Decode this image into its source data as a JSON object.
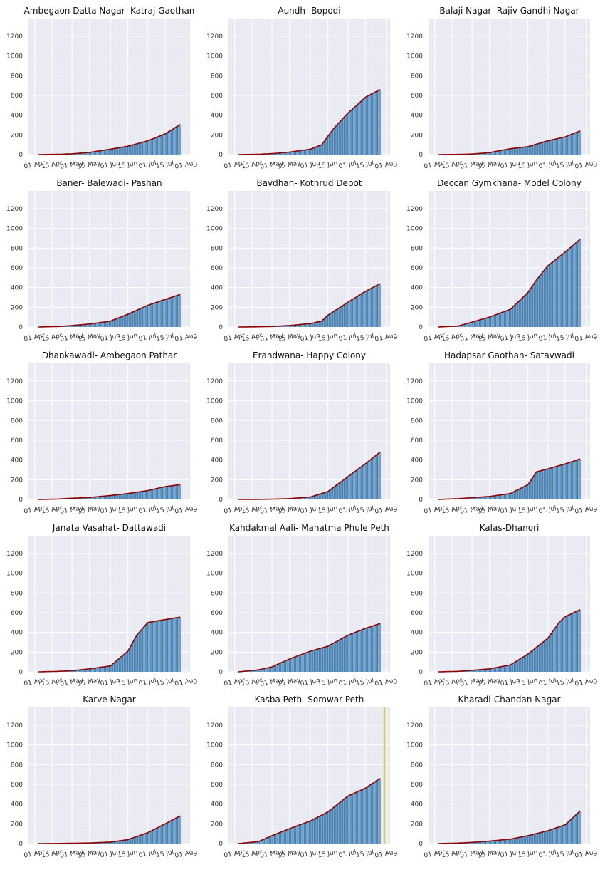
{
  "chart_data": {
    "type": "bar",
    "ylim": [
      0,
      1380
    ],
    "yticks": [
      0,
      200,
      400,
      600,
      800,
      1000,
      1200
    ],
    "xticks": [
      "01 Apr",
      "15 Apr",
      "01 May",
      "15 May",
      "01 Jun",
      "15 Jun",
      "01 Jul",
      "15 Jul",
      "01 Aug"
    ],
    "colors": {
      "bar": "#4682b4",
      "line": "#8b0000",
      "background": "#eaeaf2",
      "grid": "#ffffff",
      "highlight": "#d4cc78"
    },
    "panels": [
      {
        "title": "Ambegaon Datta Nagar- Katraj Gaothan",
        "anchors": [
          [
            "2020-04-04",
            0
          ],
          [
            "2020-04-20",
            3
          ],
          [
            "2020-05-01",
            8
          ],
          [
            "2020-05-15",
            22
          ],
          [
            "2020-06-01",
            55
          ],
          [
            "2020-06-15",
            85
          ],
          [
            "2020-07-01",
            140
          ],
          [
            "2020-07-15",
            210
          ],
          [
            "2020-07-27",
            305
          ]
        ]
      },
      {
        "title": "Aundh- Bopodi",
        "anchors": [
          [
            "2020-04-04",
            0
          ],
          [
            "2020-04-20",
            3
          ],
          [
            "2020-05-01",
            10
          ],
          [
            "2020-05-15",
            25
          ],
          [
            "2020-06-01",
            55
          ],
          [
            "2020-06-10",
            100
          ],
          [
            "2020-06-20",
            270
          ],
          [
            "2020-07-01",
            420
          ],
          [
            "2020-07-10",
            520
          ],
          [
            "2020-07-15",
            580
          ],
          [
            "2020-07-27",
            660
          ]
        ]
      },
      {
        "title": "Balaji Nagar- Rajiv Gandhi Nagar",
        "anchors": [
          [
            "2020-04-04",
            0
          ],
          [
            "2020-04-20",
            2
          ],
          [
            "2020-05-01",
            6
          ],
          [
            "2020-05-15",
            20
          ],
          [
            "2020-06-01",
            60
          ],
          [
            "2020-06-15",
            80
          ],
          [
            "2020-07-01",
            140
          ],
          [
            "2020-07-15",
            180
          ],
          [
            "2020-07-27",
            240
          ]
        ]
      },
      {
        "title": "Baner- Balewadi- Pashan",
        "anchors": [
          [
            "2020-04-04",
            0
          ],
          [
            "2020-04-20",
            5
          ],
          [
            "2020-05-01",
            15
          ],
          [
            "2020-05-15",
            30
          ],
          [
            "2020-06-01",
            60
          ],
          [
            "2020-06-15",
            130
          ],
          [
            "2020-07-01",
            220
          ],
          [
            "2020-07-15",
            280
          ],
          [
            "2020-07-27",
            330
          ]
        ]
      },
      {
        "title": "Bavdhan- Kothrud Depot",
        "anchors": [
          [
            "2020-04-04",
            0
          ],
          [
            "2020-04-20",
            2
          ],
          [
            "2020-05-01",
            5
          ],
          [
            "2020-05-15",
            15
          ],
          [
            "2020-06-01",
            35
          ],
          [
            "2020-06-10",
            60
          ],
          [
            "2020-06-15",
            120
          ],
          [
            "2020-07-01",
            250
          ],
          [
            "2020-07-15",
            360
          ],
          [
            "2020-07-27",
            440
          ]
        ]
      },
      {
        "title": "Deccan Gymkhana- Model Colony",
        "anchors": [
          [
            "2020-04-04",
            0
          ],
          [
            "2020-04-20",
            10
          ],
          [
            "2020-05-01",
            50
          ],
          [
            "2020-05-15",
            100
          ],
          [
            "2020-06-01",
            180
          ],
          [
            "2020-06-15",
            350
          ],
          [
            "2020-06-22",
            480
          ],
          [
            "2020-07-01",
            620
          ],
          [
            "2020-07-15",
            760
          ],
          [
            "2020-07-27",
            890
          ]
        ]
      },
      {
        "title": "Dhankawadi- Ambegaon Pathar",
        "anchors": [
          [
            "2020-04-04",
            0
          ],
          [
            "2020-04-20",
            4
          ],
          [
            "2020-05-01",
            12
          ],
          [
            "2020-05-15",
            20
          ],
          [
            "2020-06-01",
            40
          ],
          [
            "2020-06-15",
            60
          ],
          [
            "2020-07-01",
            90
          ],
          [
            "2020-07-15",
            130
          ],
          [
            "2020-07-27",
            150
          ]
        ]
      },
      {
        "title": "Erandwana- Happy Colony",
        "anchors": [
          [
            "2020-04-04",
            0
          ],
          [
            "2020-04-20",
            1
          ],
          [
            "2020-05-01",
            3
          ],
          [
            "2020-05-15",
            8
          ],
          [
            "2020-06-01",
            25
          ],
          [
            "2020-06-15",
            80
          ],
          [
            "2020-07-01",
            230
          ],
          [
            "2020-07-15",
            360
          ],
          [
            "2020-07-27",
            480
          ]
        ]
      },
      {
        "title": "Hadapsar Gaothan- Satavwadi",
        "anchors": [
          [
            "2020-04-04",
            0
          ],
          [
            "2020-04-20",
            8
          ],
          [
            "2020-05-01",
            18
          ],
          [
            "2020-05-15",
            30
          ],
          [
            "2020-06-01",
            60
          ],
          [
            "2020-06-15",
            150
          ],
          [
            "2020-06-22",
            280
          ],
          [
            "2020-07-01",
            310
          ],
          [
            "2020-07-15",
            360
          ],
          [
            "2020-07-27",
            410
          ]
        ]
      },
      {
        "title": "Janata Vasahat- Dattawadi",
        "anchors": [
          [
            "2020-04-04",
            0
          ],
          [
            "2020-04-20",
            5
          ],
          [
            "2020-05-01",
            12
          ],
          [
            "2020-05-15",
            30
          ],
          [
            "2020-06-01",
            60
          ],
          [
            "2020-06-15",
            210
          ],
          [
            "2020-06-22",
            370
          ],
          [
            "2020-07-01",
            500
          ],
          [
            "2020-07-15",
            530
          ],
          [
            "2020-07-27",
            555
          ]
        ]
      },
      {
        "title": "Kahdakmal Aali- Mahatma Phule Peth",
        "anchors": [
          [
            "2020-04-04",
            0
          ],
          [
            "2020-04-20",
            20
          ],
          [
            "2020-05-01",
            50
          ],
          [
            "2020-05-15",
            130
          ],
          [
            "2020-06-01",
            210
          ],
          [
            "2020-06-15",
            260
          ],
          [
            "2020-07-01",
            370
          ],
          [
            "2020-07-15",
            440
          ],
          [
            "2020-07-27",
            490
          ]
        ]
      },
      {
        "title": "Kalas-Dhanori",
        "anchors": [
          [
            "2020-04-04",
            0
          ],
          [
            "2020-04-20",
            5
          ],
          [
            "2020-05-01",
            15
          ],
          [
            "2020-05-15",
            30
          ],
          [
            "2020-06-01",
            70
          ],
          [
            "2020-06-15",
            180
          ],
          [
            "2020-07-01",
            340
          ],
          [
            "2020-07-10",
            500
          ],
          [
            "2020-07-15",
            560
          ],
          [
            "2020-07-27",
            630
          ]
        ]
      },
      {
        "title": "Karve Nagar",
        "anchors": [
          [
            "2020-04-04",
            0
          ],
          [
            "2020-04-20",
            1
          ],
          [
            "2020-05-01",
            3
          ],
          [
            "2020-05-15",
            6
          ],
          [
            "2020-06-01",
            15
          ],
          [
            "2020-06-15",
            40
          ],
          [
            "2020-07-01",
            110
          ],
          [
            "2020-07-15",
            200
          ],
          [
            "2020-07-27",
            280
          ]
        ]
      },
      {
        "title": "Kasba Peth- Somwar Peth",
        "highlight_date": "2020-07-30",
        "anchors": [
          [
            "2020-04-04",
            0
          ],
          [
            "2020-04-20",
            20
          ],
          [
            "2020-05-01",
            80
          ],
          [
            "2020-05-15",
            150
          ],
          [
            "2020-06-01",
            230
          ],
          [
            "2020-06-15",
            320
          ],
          [
            "2020-07-01",
            480
          ],
          [
            "2020-07-15",
            560
          ],
          [
            "2020-07-27",
            660
          ]
        ]
      },
      {
        "title": "Kharadi-Chandan Nagar",
        "anchors": [
          [
            "2020-04-04",
            0
          ],
          [
            "2020-04-20",
            5
          ],
          [
            "2020-05-01",
            12
          ],
          [
            "2020-05-15",
            25
          ],
          [
            "2020-06-01",
            45
          ],
          [
            "2020-06-15",
            80
          ],
          [
            "2020-07-01",
            130
          ],
          [
            "2020-07-15",
            190
          ],
          [
            "2020-07-27",
            330
          ]
        ]
      }
    ]
  }
}
